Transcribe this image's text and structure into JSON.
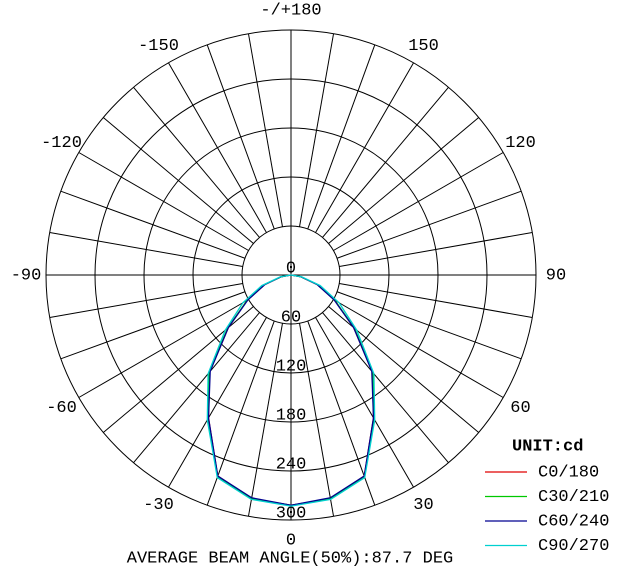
{
  "chart_data": {
    "type": "polar",
    "angle_ticks": [
      0,
      30,
      60,
      90,
      120,
      150,
      {
        "value": 180,
        "label": "-/+180"
      },
      -150,
      -120,
      -90,
      -60,
      -30
    ],
    "rlim": [
      0,
      300
    ],
    "rticks": [
      0,
      60,
      120,
      180,
      240,
      300
    ],
    "angles": [
      0,
      10,
      20,
      30,
      40,
      50,
      60,
      70,
      80,
      90
    ],
    "legend_title": "UNIT:cd",
    "series": [
      {
        "name": "C0/180",
        "color": "#e00000",
        "values": [
          282,
          278,
          262,
          202,
          155,
          100,
          62,
          34,
          12,
          0
        ]
      },
      {
        "name": "C30/210",
        "color": "#00c800",
        "values": [
          282,
          278,
          263,
          203,
          156,
          101,
          62,
          35,
          12,
          0
        ]
      },
      {
        "name": "C60/240",
        "color": "#000090",
        "values": [
          282,
          277,
          262,
          202,
          154,
          100,
          61,
          34,
          12,
          0
        ]
      },
      {
        "name": "C90/270",
        "color": "#00d0d0",
        "values": [
          283,
          279,
          264,
          205,
          158,
          105,
          68,
          38,
          13,
          0
        ]
      }
    ],
    "footer": "AVERAGE BEAM ANGLE(50%):87.7 DEG"
  }
}
